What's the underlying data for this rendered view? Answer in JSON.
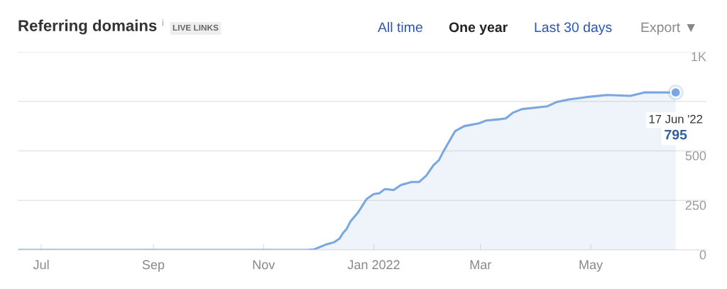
{
  "chart_data": {
    "type": "area",
    "title": "Referring domains",
    "annotations": [
      "i",
      "LIVE LINKS",
      "All time",
      "One year",
      "Last 30 days",
      "Export ▼",
      {
        "text": "17 Jun '22",
        "x": "2022-06-17",
        "y": 795
      },
      {
        "text": "795",
        "x": "2022-06-17",
        "y": 795
      }
    ],
    "x": [
      "2021-06-19",
      "2021-11-25",
      "2021-11-29",
      "2021-12-06",
      "2021-12-10",
      "2021-12-13",
      "2021-12-15",
      "2021-12-17",
      "2021-12-19",
      "2021-12-23",
      "2021-12-25",
      "2021-12-28",
      "2022-01-01",
      "2022-01-04",
      "2022-01-07",
      "2022-01-12",
      "2022-01-16",
      "2022-01-22",
      "2022-01-26",
      "2022-01-30",
      "2022-02-03",
      "2022-02-06",
      "2022-02-08",
      "2022-02-12",
      "2022-02-15",
      "2022-02-20",
      "2022-02-28",
      "2022-03-04",
      "2022-03-12",
      "2022-03-15",
      "2022-03-19",
      "2022-03-24",
      "2022-04-07",
      "2022-04-12",
      "2022-04-19",
      "2022-04-28",
      "2022-05-10",
      "2022-05-23",
      "2022-05-31",
      "2022-06-17"
    ],
    "series": [
      {
        "color": "#7aa7e0",
        "values": [
          0,
          0,
          3,
          29,
          39,
          57,
          86,
          107,
          143,
          186,
          214,
          257,
          282,
          286,
          307,
          303,
          328,
          343,
          343,
          375,
          428,
          453,
          489,
          553,
          600,
          625,
          639,
          653,
          660,
          664,
          693,
          711,
          725,
          746,
          760,
          771,
          782,
          778,
          796,
          795
        ]
      }
    ],
    "xlim": [
      "2021-06-18",
      "2022-07-04"
    ],
    "xticks": [
      {
        "value": "2021-07-01",
        "label": "Jul"
      },
      {
        "value": "2021-09-01",
        "label": "Sep"
      },
      {
        "value": "2021-11-01",
        "label": "Nov"
      },
      {
        "value": "2022-01-01",
        "label": "Jan 2022"
      },
      {
        "value": "2022-03-01",
        "label": "Mar"
      },
      {
        "value": "2022-05-01",
        "label": "May"
      }
    ],
    "ylim": [
      0,
      1000
    ],
    "yticks": [
      0,
      250,
      500,
      {
        "value": 750,
        "label": null
      },
      {
        "value": 1000,
        "label": "1K"
      }
    ],
    "grid": "y",
    "legend": false,
    "marker": "none",
    "line_style": "solid"
  }
}
